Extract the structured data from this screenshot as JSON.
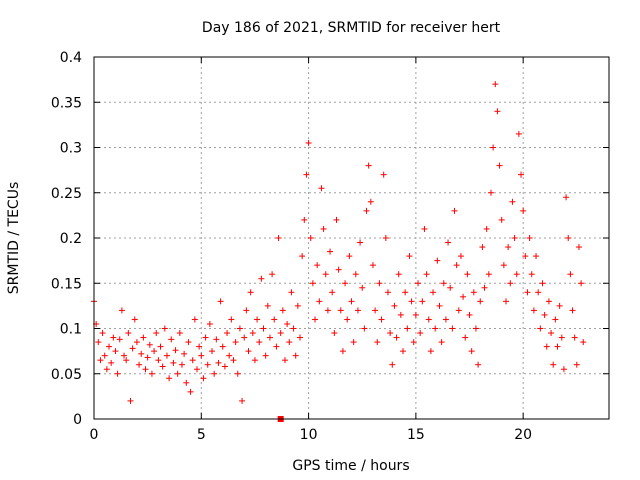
{
  "chart_data": {
    "type": "scatter",
    "title": "Day 186 of 2021, SRMTID for receiver hert",
    "xlabel": "GPS time / hours",
    "ylabel": "SRMTID / TECUs",
    "xlim": [
      0,
      24
    ],
    "ylim": [
      0,
      0.4
    ],
    "xticks": [
      0,
      5,
      10,
      15,
      20
    ],
    "xtick_labels": [
      "0",
      "5",
      "10",
      "15",
      "20"
    ],
    "yticks": [
      0,
      0.05,
      0.1,
      0.15,
      0.2,
      0.25,
      0.3,
      0.35,
      0.4
    ],
    "ytick_labels": [
      "0",
      "0.05",
      "0.1",
      "0.15",
      "0.2",
      "0.25",
      "0.3",
      "0.35",
      "0.4"
    ],
    "grid": true,
    "marker": "+",
    "marker_color": "#ff0000",
    "series": [
      {
        "name": "SRMTID",
        "color": "#ff0000",
        "points": [
          [
            0.0,
            0.13
          ],
          [
            0.1,
            0.105
          ],
          [
            0.2,
            0.085
          ],
          [
            0.3,
            0.065
          ],
          [
            0.4,
            0.095
          ],
          [
            0.5,
            0.07
          ],
          [
            0.6,
            0.055
          ],
          [
            0.7,
            0.08
          ],
          [
            0.8,
            0.062
          ],
          [
            0.9,
            0.09
          ],
          [
            1.0,
            0.075
          ],
          [
            1.1,
            0.05
          ],
          [
            1.2,
            0.088
          ],
          [
            1.3,
            0.12
          ],
          [
            1.4,
            0.07
          ],
          [
            1.5,
            0.065
          ],
          [
            1.6,
            0.095
          ],
          [
            1.7,
            0.02
          ],
          [
            1.8,
            0.078
          ],
          [
            1.9,
            0.11
          ],
          [
            2.0,
            0.085
          ],
          [
            2.1,
            0.06
          ],
          [
            2.2,
            0.072
          ],
          [
            2.3,
            0.09
          ],
          [
            2.4,
            0.055
          ],
          [
            2.5,
            0.068
          ],
          [
            2.6,
            0.082
          ],
          [
            2.7,
            0.05
          ],
          [
            2.8,
            0.075
          ],
          [
            2.9,
            0.095
          ],
          [
            3.0,
            0.065
          ],
          [
            3.1,
            0.08
          ],
          [
            3.2,
            0.058
          ],
          [
            3.3,
            0.1
          ],
          [
            3.4,
            0.07
          ],
          [
            3.5,
            0.045
          ],
          [
            3.6,
            0.088
          ],
          [
            3.7,
            0.062
          ],
          [
            3.8,
            0.076
          ],
          [
            3.9,
            0.05
          ],
          [
            4.0,
            0.095
          ],
          [
            4.1,
            0.06
          ],
          [
            4.2,
            0.072
          ],
          [
            4.3,
            0.04
          ],
          [
            4.4,
            0.085
          ],
          [
            4.5,
            0.03
          ],
          [
            4.6,
            0.065
          ],
          [
            4.7,
            0.11
          ],
          [
            4.8,
            0.055
          ],
          [
            4.9,
            0.08
          ],
          [
            5.0,
            0.07
          ],
          [
            5.1,
            0.045
          ],
          [
            5.2,
            0.09
          ],
          [
            5.3,
            0.06
          ],
          [
            5.4,
            0.105
          ],
          [
            5.5,
            0.075
          ],
          [
            5.6,
            0.05
          ],
          [
            5.7,
            0.088
          ],
          [
            5.8,
            0.062
          ],
          [
            5.9,
            0.13
          ],
          [
            6.0,
            0.08
          ],
          [
            6.1,
            0.058
          ],
          [
            6.2,
            0.095
          ],
          [
            6.3,
            0.07
          ],
          [
            6.4,
            0.11
          ],
          [
            6.5,
            0.065
          ],
          [
            6.6,
            0.085
          ],
          [
            6.7,
            0.05
          ],
          [
            6.8,
            0.1
          ],
          [
            6.9,
            0.02
          ],
          [
            7.0,
            0.09
          ],
          [
            7.1,
            0.12
          ],
          [
            7.2,
            0.075
          ],
          [
            7.3,
            0.14
          ],
          [
            7.4,
            0.095
          ],
          [
            7.5,
            0.065
          ],
          [
            7.6,
            0.11
          ],
          [
            7.7,
            0.085
          ],
          [
            7.8,
            0.155
          ],
          [
            7.9,
            0.1
          ],
          [
            8.0,
            0.07
          ],
          [
            8.1,
            0.125
          ],
          [
            8.2,
            0.09
          ],
          [
            8.3,
            0.16
          ],
          [
            8.4,
            0.11
          ],
          [
            8.5,
            0.08
          ],
          [
            8.6,
            0.2
          ],
          [
            8.7,
            0.095
          ],
          [
            8.8,
            0.12
          ],
          [
            8.9,
            0.065
          ],
          [
            9.0,
            0.105
          ],
          [
            9.1,
            0.085
          ],
          [
            9.2,
            0.14
          ],
          [
            9.3,
            0.1
          ],
          [
            9.4,
            0.07
          ],
          [
            9.5,
            0.125
          ],
          [
            9.6,
            0.09
          ],
          [
            9.7,
            0.18
          ],
          [
            9.8,
            0.22
          ],
          [
            9.9,
            0.27
          ],
          [
            10.0,
            0.305
          ],
          [
            10.1,
            0.2
          ],
          [
            10.2,
            0.15
          ],
          [
            10.3,
            0.11
          ],
          [
            10.4,
            0.17
          ],
          [
            10.5,
            0.13
          ],
          [
            10.6,
            0.255
          ],
          [
            10.7,
            0.21
          ],
          [
            10.8,
            0.16
          ],
          [
            10.9,
            0.12
          ],
          [
            11.0,
            0.185
          ],
          [
            11.1,
            0.14
          ],
          [
            11.2,
            0.095
          ],
          [
            11.3,
            0.22
          ],
          [
            11.4,
            0.165
          ],
          [
            11.5,
            0.12
          ],
          [
            11.6,
            0.075
          ],
          [
            11.7,
            0.15
          ],
          [
            11.8,
            0.11
          ],
          [
            11.9,
            0.18
          ],
          [
            12.0,
            0.13
          ],
          [
            12.1,
            0.085
          ],
          [
            12.2,
            0.16
          ],
          [
            12.3,
            0.12
          ],
          [
            12.4,
            0.195
          ],
          [
            12.5,
            0.145
          ],
          [
            12.6,
            0.1
          ],
          [
            12.7,
            0.23
          ],
          [
            12.8,
            0.28
          ],
          [
            12.9,
            0.24
          ],
          [
            13.0,
            0.17
          ],
          [
            13.1,
            0.12
          ],
          [
            13.2,
            0.085
          ],
          [
            13.3,
            0.15
          ],
          [
            13.4,
            0.11
          ],
          [
            13.5,
            0.27
          ],
          [
            13.6,
            0.2
          ],
          [
            13.7,
            0.14
          ],
          [
            13.8,
            0.095
          ],
          [
            13.9,
            0.06
          ],
          [
            14.0,
            0.125
          ],
          [
            14.1,
            0.09
          ],
          [
            14.2,
            0.16
          ],
          [
            14.3,
            0.115
          ],
          [
            14.4,
            0.075
          ],
          [
            14.5,
            0.14
          ],
          [
            14.6,
            0.1
          ],
          [
            14.7,
            0.18
          ],
          [
            14.8,
            0.13
          ],
          [
            14.9,
            0.085
          ],
          [
            15.0,
            0.115
          ],
          [
            15.1,
            0.15
          ],
          [
            15.2,
            0.095
          ],
          [
            15.3,
            0.13
          ],
          [
            15.4,
            0.21
          ],
          [
            15.5,
            0.16
          ],
          [
            15.6,
            0.11
          ],
          [
            15.7,
            0.075
          ],
          [
            15.8,
            0.14
          ],
          [
            15.9,
            0.1
          ],
          [
            16.0,
            0.175
          ],
          [
            16.1,
            0.125
          ],
          [
            16.2,
            0.085
          ],
          [
            16.3,
            0.15
          ],
          [
            16.4,
            0.11
          ],
          [
            16.5,
            0.195
          ],
          [
            16.6,
            0.145
          ],
          [
            16.7,
            0.1
          ],
          [
            16.8,
            0.23
          ],
          [
            16.9,
            0.17
          ],
          [
            17.0,
            0.12
          ],
          [
            17.1,
            0.18
          ],
          [
            17.2,
            0.135
          ],
          [
            17.3,
            0.09
          ],
          [
            17.4,
            0.16
          ],
          [
            17.5,
            0.115
          ],
          [
            17.6,
            0.075
          ],
          [
            17.7,
            0.14
          ],
          [
            17.8,
            0.1
          ],
          [
            17.9,
            0.06
          ],
          [
            18.0,
            0.13
          ],
          [
            18.1,
            0.19
          ],
          [
            18.2,
            0.145
          ],
          [
            18.3,
            0.21
          ],
          [
            18.4,
            0.16
          ],
          [
            18.5,
            0.25
          ],
          [
            18.6,
            0.3
          ],
          [
            18.7,
            0.37
          ],
          [
            18.8,
            0.34
          ],
          [
            18.9,
            0.28
          ],
          [
            19.0,
            0.22
          ],
          [
            19.1,
            0.17
          ],
          [
            19.2,
            0.13
          ],
          [
            19.3,
            0.19
          ],
          [
            19.4,
            0.15
          ],
          [
            19.5,
            0.24
          ],
          [
            19.6,
            0.2
          ],
          [
            19.7,
            0.16
          ],
          [
            19.8,
            0.315
          ],
          [
            19.9,
            0.27
          ],
          [
            20.0,
            0.23
          ],
          [
            20.1,
            0.18
          ],
          [
            20.2,
            0.14
          ],
          [
            20.3,
            0.2
          ],
          [
            20.4,
            0.16
          ],
          [
            20.5,
            0.12
          ],
          [
            20.6,
            0.18
          ],
          [
            20.7,
            0.14
          ],
          [
            20.8,
            0.1
          ],
          [
            20.9,
            0.15
          ],
          [
            21.0,
            0.115
          ],
          [
            21.1,
            0.08
          ],
          [
            21.2,
            0.13
          ],
          [
            21.3,
            0.095
          ],
          [
            21.4,
            0.06
          ],
          [
            21.5,
            0.11
          ],
          [
            21.6,
            0.08
          ],
          [
            21.7,
            0.125
          ],
          [
            21.8,
            0.09
          ],
          [
            21.9,
            0.055
          ],
          [
            22.0,
            0.245
          ],
          [
            22.1,
            0.2
          ],
          [
            22.2,
            0.16
          ],
          [
            22.3,
            0.12
          ],
          [
            22.4,
            0.09
          ],
          [
            22.5,
            0.06
          ],
          [
            22.6,
            0.19
          ],
          [
            22.7,
            0.15
          ],
          [
            22.8,
            0.085
          ]
        ]
      }
    ],
    "highlight_marker": {
      "x": 8.7,
      "y": 0.0,
      "shape": "square",
      "color": "#ff0000"
    }
  }
}
